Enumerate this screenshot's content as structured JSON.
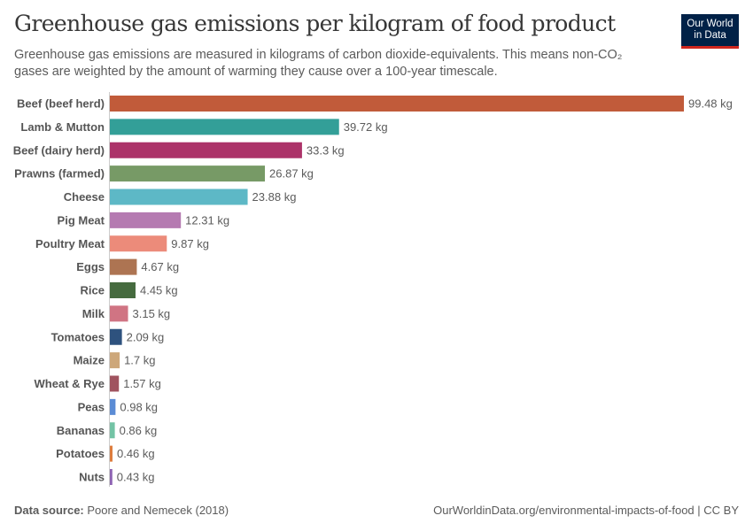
{
  "header": {
    "title": "Greenhouse gas emissions per kilogram of food product",
    "subtitle": "Greenhouse gas emissions are measured in kilograms of carbon dioxide-equivalents. This means non-CO₂ gases are weighted by the amount of warming they cause over a 100-year timescale.",
    "logo_line1": "Our World",
    "logo_line2": "in Data"
  },
  "footer": {
    "source_label": "Data source:",
    "source": "Poore and Nemecek (2018)",
    "url": "OurWorldinData.org/environmental-impacts-of-food | CC BY"
  },
  "chart_data": {
    "type": "bar",
    "orientation": "horizontal",
    "unit": "kg",
    "categories": [
      "Beef (beef herd)",
      "Lamb & Mutton",
      "Beef (dairy herd)",
      "Prawns (farmed)",
      "Cheese",
      "Pig Meat",
      "Poultry Meat",
      "Eggs",
      "Rice",
      "Milk",
      "Tomatoes",
      "Maize",
      "Wheat & Rye",
      "Peas",
      "Bananas",
      "Potatoes",
      "Nuts"
    ],
    "values": [
      99.48,
      39.72,
      33.3,
      26.87,
      23.88,
      12.31,
      9.87,
      4.67,
      4.45,
      3.15,
      2.09,
      1.7,
      1.57,
      0.98,
      0.86,
      0.46,
      0.43
    ],
    "labels": [
      "99.48 kg",
      "39.72 kg",
      "33.3 kg",
      "26.87 kg",
      "23.88 kg",
      "12.31 kg",
      "9.87 kg",
      "4.67 kg",
      "4.45 kg",
      "3.15 kg",
      "2.09 kg",
      "1.7 kg",
      "1.57 kg",
      "0.98 kg",
      "0.86 kg",
      "0.46 kg",
      "0.43 kg"
    ],
    "colors": [
      "#c15b3a",
      "#339f98",
      "#ac3369",
      "#779a66",
      "#5db8c6",
      "#b57ab1",
      "#ec8b7a",
      "#ad7452",
      "#466b3f",
      "#d07483",
      "#2e527e",
      "#cda77a",
      "#a0535f",
      "#5b8cd5",
      "#73c3a5",
      "#dd7d3e",
      "#8e63b3"
    ],
    "xlim": [
      0,
      99.48
    ],
    "grid": false
  }
}
